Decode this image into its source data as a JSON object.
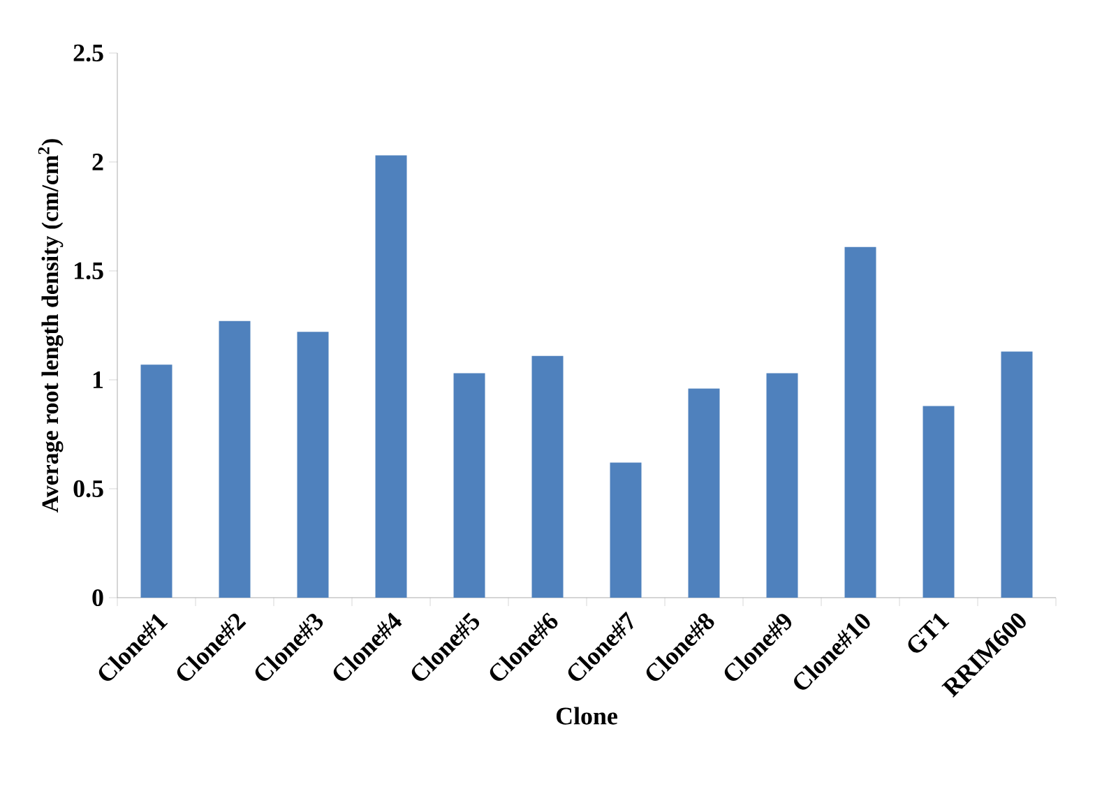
{
  "chart_data": {
    "type": "bar",
    "xlabel": "Clone",
    "ylabel": "Average root length density (cm/cm$^{2}$)",
    "categories": [
      "Clone#1",
      "Clone#2",
      "Clone#3",
      "Clone#4",
      "Clone#5",
      "Clone#6",
      "Clone#7",
      "Clone#8",
      "Clone#9",
      "Clone#10",
      "GT1",
      "RRIM600"
    ],
    "values": [
      1.07,
      1.27,
      1.22,
      2.03,
      1.03,
      1.11,
      0.62,
      0.96,
      1.03,
      1.61,
      0.88,
      1.13
    ],
    "color": "#4f81bd",
    "ylim": [
      0,
      2.5
    ],
    "yticks": [
      0,
      0.5,
      1,
      1.5,
      2,
      2.5
    ]
  }
}
